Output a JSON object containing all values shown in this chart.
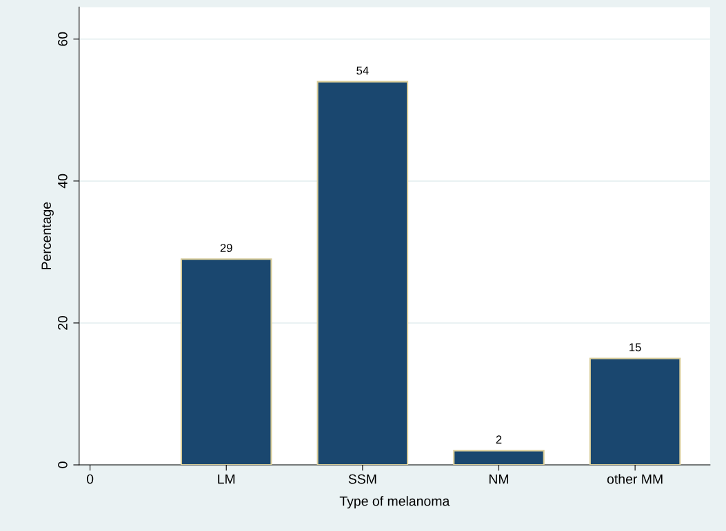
{
  "chart_data": {
    "type": "bar",
    "xlabel": "Type of melanoma",
    "ylabel": "Percentage",
    "categories": [
      "0",
      "LM",
      "SSM",
      "NM",
      "other MM"
    ],
    "values": [
      null,
      29,
      54,
      2,
      15
    ],
    "color": "#1a476f",
    "ylim": [
      0,
      64.5
    ],
    "yticks": [
      0,
      20,
      40,
      60
    ],
    "grid": "y",
    "data_labels": true
  }
}
